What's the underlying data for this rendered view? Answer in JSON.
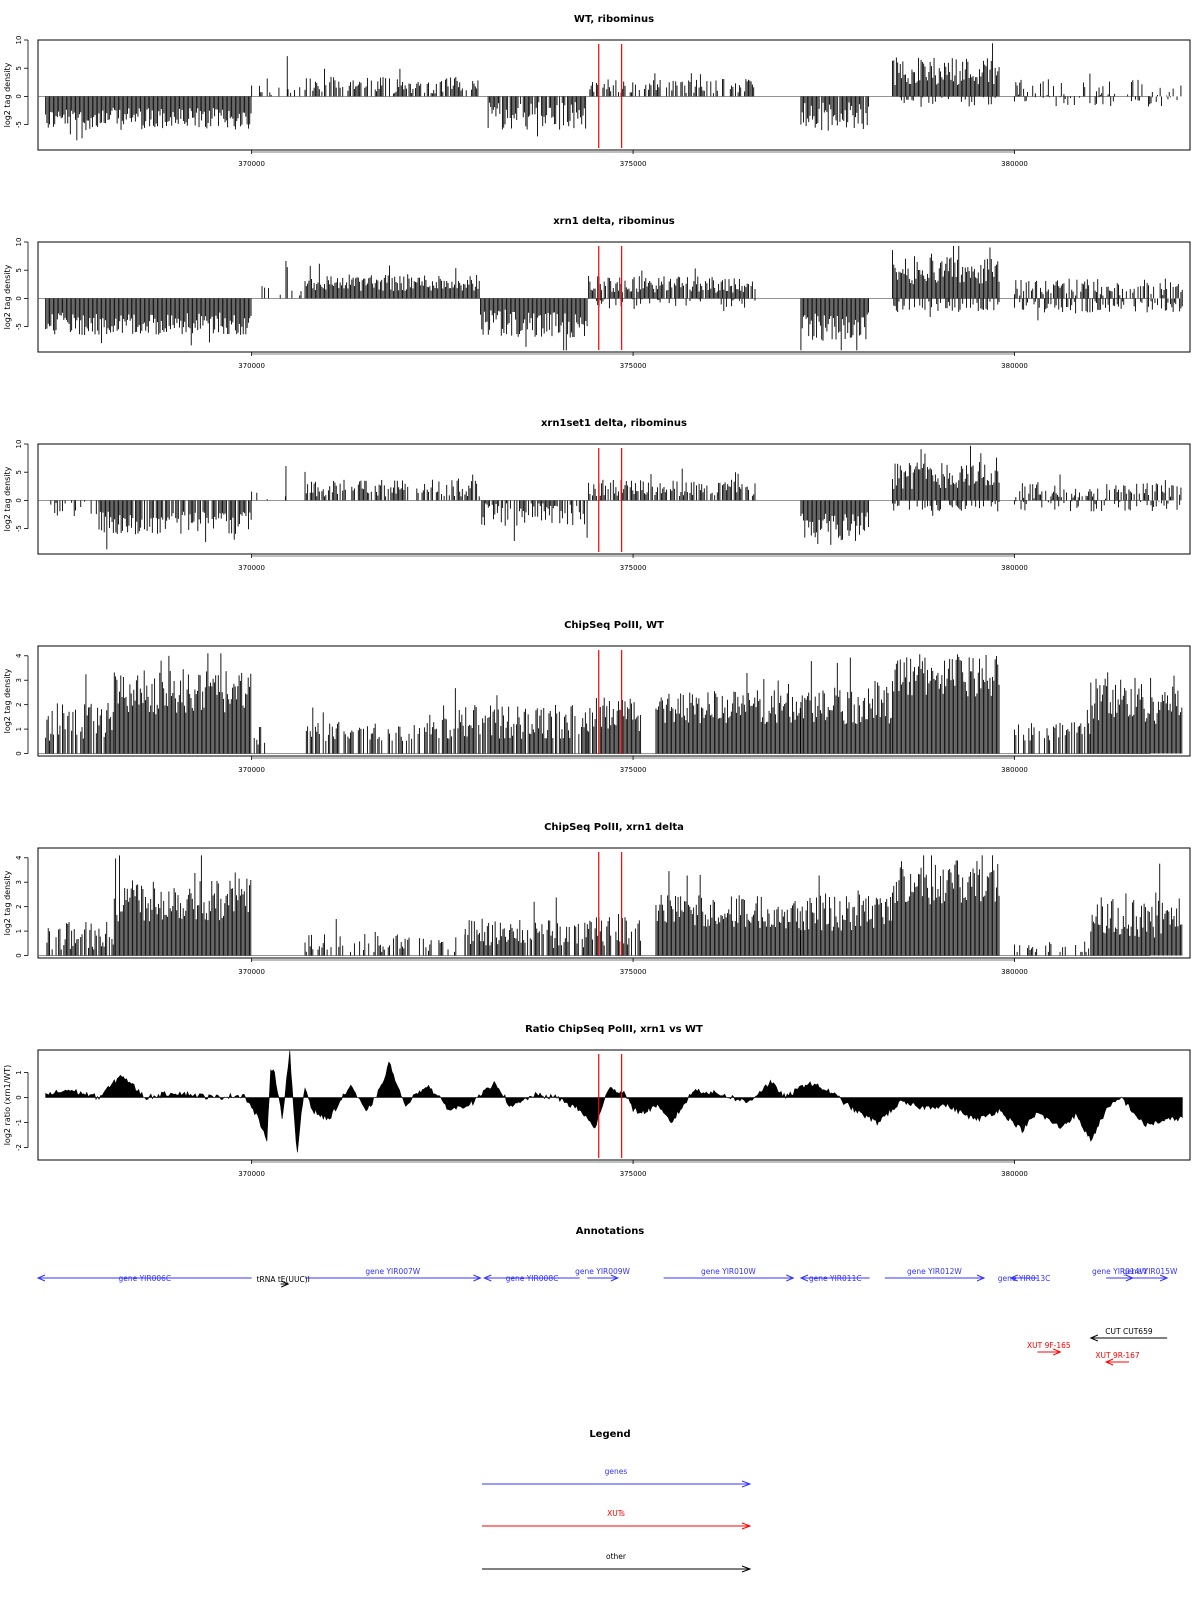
{
  "chart_data": [
    {
      "type": "bar",
      "title": "WT, ribominus",
      "ylabel": "log2 tag density",
      "xlim": [
        367200,
        382300
      ],
      "ylim": [
        -9.5,
        10
      ],
      "yticks": [
        -5,
        0,
        5,
        10
      ],
      "xticks": [
        370000,
        375000,
        380000
      ],
      "markers_x": [
        374550,
        374850
      ],
      "segments": [
        {
          "from": 367300,
          "to": 370000,
          "sign": -1,
          "level": 4.0,
          "var": 2.0,
          "density": 1.0
        },
        {
          "from": 370000,
          "to": 370650,
          "sign": 1,
          "level": 1.0,
          "var": 1.0,
          "density": 0.2
        },
        {
          "from": 370450,
          "to": 370500,
          "sign": 1,
          "level": 7.0,
          "var": 1.0,
          "density": 0.5
        },
        {
          "from": 370700,
          "to": 373000,
          "sign": 1,
          "level": 2.0,
          "var": 1.5,
          "density": 0.7
        },
        {
          "from": 373100,
          "to": 374400,
          "sign": -1,
          "level": 3.5,
          "var": 2.5,
          "density": 0.9
        },
        {
          "from": 374400,
          "to": 376600,
          "sign": 1,
          "level": 1.8,
          "var": 1.3,
          "density": 0.55
        },
        {
          "from": 377200,
          "to": 378100,
          "sign": -1,
          "level": 3.5,
          "var": 2.5,
          "density": 0.9
        },
        {
          "from": 378400,
          "to": 379800,
          "sign": 1,
          "level": 4.5,
          "var": 2.5,
          "density": 1.0
        },
        {
          "from": 378400,
          "to": 379800,
          "sign": -1,
          "level": 1.0,
          "var": 1.0,
          "density": 0.3
        },
        {
          "from": 380000,
          "to": 382200,
          "sign": 1,
          "level": 1.5,
          "var": 1.5,
          "density": 0.35
        },
        {
          "from": 380000,
          "to": 382200,
          "sign": -1,
          "level": 0.8,
          "var": 1.0,
          "density": 0.25
        }
      ]
    },
    {
      "type": "bar",
      "title": "xrn1 delta, ribominus",
      "ylabel": "log2 tag density",
      "xlim": [
        367200,
        382300
      ],
      "ylim": [
        -9.5,
        10
      ],
      "yticks": [
        -5,
        0,
        5,
        10
      ],
      "xticks": [
        370000,
        375000,
        380000
      ],
      "markers_x": [
        374550,
        374850
      ],
      "segments": [
        {
          "from": 367300,
          "to": 370000,
          "sign": -1,
          "level": 4.5,
          "var": 2.0,
          "density": 1.0
        },
        {
          "from": 370000,
          "to": 370650,
          "sign": 1,
          "level": 1.5,
          "var": 1.2,
          "density": 0.3
        },
        {
          "from": 370450,
          "to": 370500,
          "sign": 1,
          "level": 6.0,
          "var": 1.0,
          "density": 0.5
        },
        {
          "from": 370700,
          "to": 373000,
          "sign": 1,
          "level": 2.8,
          "var": 1.5,
          "density": 1.0
        },
        {
          "from": 373000,
          "to": 374400,
          "sign": -1,
          "level": 4.5,
          "var": 2.5,
          "density": 1.0
        },
        {
          "from": 374400,
          "to": 376600,
          "sign": 1,
          "level": 2.5,
          "var": 1.5,
          "density": 0.9
        },
        {
          "from": 374400,
          "to": 376600,
          "sign": -1,
          "level": 1.0,
          "var": 1.0,
          "density": 0.3
        },
        {
          "from": 377200,
          "to": 378100,
          "sign": -1,
          "level": 5.0,
          "var": 2.5,
          "density": 1.0
        },
        {
          "from": 378400,
          "to": 379800,
          "sign": 1,
          "level": 5.0,
          "var": 2.5,
          "density": 1.0
        },
        {
          "from": 378400,
          "to": 379800,
          "sign": -1,
          "level": 1.5,
          "var": 1.0,
          "density": 0.5
        },
        {
          "from": 380000,
          "to": 382200,
          "sign": 1,
          "level": 2.0,
          "var": 1.5,
          "density": 0.7
        },
        {
          "from": 380000,
          "to": 382200,
          "sign": -1,
          "level": 1.5,
          "var": 1.0,
          "density": 0.5
        }
      ]
    },
    {
      "type": "bar",
      "title": "xrn1set1 delta, ribominus",
      "ylabel": "log2 tag density",
      "xlim": [
        367200,
        382300
      ],
      "ylim": [
        -9.5,
        10
      ],
      "yticks": [
        -5,
        0,
        5,
        10
      ],
      "xticks": [
        370000,
        375000,
        380000
      ],
      "markers_x": [
        374550,
        374850
      ],
      "segments": [
        {
          "from": 367300,
          "to": 368000,
          "sign": -1,
          "level": 1.5,
          "var": 1.5,
          "density": 0.4
        },
        {
          "from": 368000,
          "to": 370000,
          "sign": -1,
          "level": 4.0,
          "var": 2.0,
          "density": 0.9
        },
        {
          "from": 370000,
          "to": 370650,
          "sign": 1,
          "level": 1.0,
          "var": 1.0,
          "density": 0.2
        },
        {
          "from": 370450,
          "to": 370500,
          "sign": 1,
          "level": 7.0,
          "var": 1.0,
          "density": 0.5
        },
        {
          "from": 370700,
          "to": 373000,
          "sign": 1,
          "level": 2.2,
          "var": 1.5,
          "density": 0.75
        },
        {
          "from": 373000,
          "to": 374400,
          "sign": -1,
          "level": 2.5,
          "var": 2.0,
          "density": 0.8
        },
        {
          "from": 374400,
          "to": 376600,
          "sign": 1,
          "level": 2.2,
          "var": 1.5,
          "density": 0.8
        },
        {
          "from": 377200,
          "to": 378100,
          "sign": -1,
          "level": 4.5,
          "var": 2.5,
          "density": 1.0
        },
        {
          "from": 378400,
          "to": 379800,
          "sign": 1,
          "level": 4.5,
          "var": 2.5,
          "density": 1.0
        },
        {
          "from": 378400,
          "to": 379800,
          "sign": -1,
          "level": 1.0,
          "var": 1.0,
          "density": 0.4
        },
        {
          "from": 380000,
          "to": 382200,
          "sign": 1,
          "level": 1.8,
          "var": 1.5,
          "density": 0.6
        },
        {
          "from": 380000,
          "to": 382200,
          "sign": -1,
          "level": 1.0,
          "var": 1.0,
          "density": 0.4
        }
      ]
    },
    {
      "type": "bar",
      "title": "ChipSeq PolII, WT",
      "ylabel": "log2 tag density",
      "xlim": [
        367200,
        382300
      ],
      "ylim": [
        -0.1,
        4.4
      ],
      "yticks": [
        0,
        1,
        2,
        3,
        4
      ],
      "xticks": [
        370000,
        375000,
        380000
      ],
      "markers_x": [
        374550,
        374850
      ],
      "segments": [
        {
          "from": 367300,
          "to": 368200,
          "sign": 1,
          "level": 1.3,
          "var": 0.8,
          "density": 0.8
        },
        {
          "from": 368200,
          "to": 370000,
          "sign": 1,
          "level": 2.5,
          "var": 0.9,
          "density": 1.0
        },
        {
          "from": 370000,
          "to": 370200,
          "sign": 1,
          "level": 0.7,
          "var": 0.4,
          "density": 0.6
        },
        {
          "from": 370700,
          "to": 372500,
          "sign": 1,
          "level": 0.9,
          "var": 0.4,
          "density": 0.6
        },
        {
          "from": 372500,
          "to": 374400,
          "sign": 1,
          "level": 1.3,
          "var": 0.7,
          "density": 0.85
        },
        {
          "from": 374400,
          "to": 375100,
          "sign": 1,
          "level": 1.6,
          "var": 0.7,
          "density": 0.9
        },
        {
          "from": 375300,
          "to": 377200,
          "sign": 1,
          "level": 1.9,
          "var": 0.7,
          "density": 1.0
        },
        {
          "from": 377200,
          "to": 378400,
          "sign": 1,
          "level": 2.0,
          "var": 0.8,
          "density": 1.0
        },
        {
          "from": 378400,
          "to": 379800,
          "sign": 1,
          "level": 3.2,
          "var": 0.9,
          "density": 1.0
        },
        {
          "from": 380000,
          "to": 381000,
          "sign": 1,
          "level": 0.9,
          "var": 0.4,
          "density": 0.6
        },
        {
          "from": 381000,
          "to": 382200,
          "sign": 1,
          "level": 2.2,
          "var": 1.0,
          "density": 1.0
        }
      ]
    },
    {
      "type": "bar",
      "title": "ChipSeq PolII, xrn1 delta",
      "ylabel": "log2 tag density",
      "xlim": [
        367200,
        382300
      ],
      "ylim": [
        -0.1,
        4.4
      ],
      "yticks": [
        0,
        1,
        2,
        3,
        4
      ],
      "xticks": [
        370000,
        375000,
        380000
      ],
      "markers_x": [
        374550,
        374850
      ],
      "segments": [
        {
          "from": 367300,
          "to": 368200,
          "sign": 1,
          "level": 0.8,
          "var": 0.6,
          "density": 0.7
        },
        {
          "from": 368200,
          "to": 370000,
          "sign": 1,
          "level": 2.3,
          "var": 0.9,
          "density": 1.0
        },
        {
          "from": 370700,
          "to": 372800,
          "sign": 1,
          "level": 0.5,
          "var": 0.4,
          "density": 0.5
        },
        {
          "from": 372800,
          "to": 374400,
          "sign": 1,
          "level": 0.9,
          "var": 0.6,
          "density": 0.8
        },
        {
          "from": 374400,
          "to": 375100,
          "sign": 1,
          "level": 1.0,
          "var": 0.6,
          "density": 0.8
        },
        {
          "from": 375300,
          "to": 377200,
          "sign": 1,
          "level": 1.8,
          "var": 0.7,
          "density": 1.0
        },
        {
          "from": 377200,
          "to": 378400,
          "sign": 1,
          "level": 1.8,
          "var": 0.8,
          "density": 1.0
        },
        {
          "from": 378400,
          "to": 379800,
          "sign": 1,
          "level": 3.0,
          "var": 0.9,
          "density": 1.0
        },
        {
          "from": 380000,
          "to": 381000,
          "sign": 1,
          "level": 0.3,
          "var": 0.3,
          "density": 0.4
        },
        {
          "from": 381000,
          "to": 382200,
          "sign": 1,
          "level": 1.6,
          "var": 0.9,
          "density": 1.0
        }
      ]
    },
    {
      "type": "area",
      "title": "Ratio ChipSeq PolII, xrn1 vs WT",
      "ylabel": "log2 ratio (xrn1/WT)",
      "xlim": [
        367200,
        382300
      ],
      "ylim": [
        -2.5,
        1.9
      ],
      "yticks": [
        -2,
        -1,
        0,
        1
      ],
      "xticks": [
        370000,
        375000,
        380000
      ],
      "markers_x": [
        374550,
        374850
      ],
      "x": [
        367300,
        367600,
        368000,
        368300,
        368600,
        369000,
        369500,
        369900,
        370100,
        370200,
        370250,
        370300,
        370400,
        370500,
        370550,
        370600,
        370650,
        370700,
        370800,
        371000,
        371300,
        371500,
        371700,
        371800,
        372000,
        372300,
        372600,
        372900,
        373200,
        373400,
        373700,
        374000,
        374300,
        374500,
        374700,
        374800,
        374900,
        375000,
        375150,
        375300,
        375500,
        375800,
        376200,
        376500,
        376800,
        377000,
        377300,
        377600,
        377900,
        378200,
        378500,
        378800,
        379100,
        379500,
        379800,
        380100,
        380300,
        380600,
        380800,
        381000,
        381200,
        381400,
        381700,
        382000,
        382200
      ],
      "values": [
        0.1,
        0.3,
        0.0,
        0.9,
        0.0,
        0.2,
        0.0,
        0.1,
        -0.9,
        -1.8,
        1.2,
        1.0,
        -0.8,
        1.8,
        -0.5,
        -2.3,
        -0.6,
        0.4,
        -0.5,
        -0.9,
        0.5,
        -0.6,
        0.4,
        1.4,
        -0.3,
        0.5,
        -0.5,
        -0.2,
        0.6,
        -0.4,
        0.1,
        0.0,
        -0.5,
        -1.2,
        0.5,
        0.2,
        0.2,
        -0.5,
        -0.6,
        -0.3,
        -1.0,
        0.3,
        0.1,
        -0.2,
        0.6,
        0.0,
        0.6,
        0.2,
        -0.5,
        -1.0,
        -0.2,
        -0.4,
        -0.3,
        -0.9,
        -0.5,
        -1.3,
        -0.6,
        -1.2,
        -0.7,
        -1.7,
        -0.5,
        0.0,
        -1.1,
        -0.9,
        -0.8
      ]
    }
  ],
  "annotations": {
    "title": "Annotations",
    "xlim": [
      367200,
      382300
    ],
    "features": [
      {
        "label": "gene YIR006C",
        "color": "#3333ff",
        "from": 367200,
        "to": 370000,
        "dir": "left",
        "row": 0
      },
      {
        "label": "tRNA tE(UUC)I",
        "color": "#000000",
        "from": 370380,
        "to": 370480,
        "dir": "right",
        "row": 1
      },
      {
        "label": "gene YIR007W",
        "color": "#3333ff",
        "from": 370700,
        "to": 373000,
        "dir": "right",
        "row": 0
      },
      {
        "label": "gene YIR008C",
        "color": "#3333ff",
        "from": 373050,
        "to": 374300,
        "dir": "left",
        "row": 0
      },
      {
        "label": "gene YIR009W",
        "color": "#3333ff",
        "from": 374400,
        "to": 374800,
        "dir": "right",
        "row": 0
      },
      {
        "label": "gene YIR010W",
        "color": "#3333ff",
        "from": 375400,
        "to": 377100,
        "dir": "right",
        "row": 0
      },
      {
        "label": "gene YIR011C",
        "color": "#3333ff",
        "from": 377200,
        "to": 378100,
        "dir": "left",
        "row": 0
      },
      {
        "label": "gene YIR012W",
        "color": "#3333ff",
        "from": 378300,
        "to": 379600,
        "dir": "right",
        "row": 0
      },
      {
        "label": "gene YIR013C",
        "color": "#3333ff",
        "from": 379950,
        "to": 380300,
        "dir": "left",
        "row": 0
      },
      {
        "label": "gene YIR014W",
        "color": "#3333ff",
        "from": 381200,
        "to": 381550,
        "dir": "right",
        "row": 0
      },
      {
        "label": "gene YIR015W",
        "color": "#3333ff",
        "from": 381550,
        "to": 382000,
        "dir": "right",
        "row": 0
      },
      {
        "label": "CUT CUT659",
        "color": "#000000",
        "from": 381000,
        "to": 382000,
        "dir": "left",
        "row": 2
      },
      {
        "label": "XUT 9F-165",
        "color": "#ff0000",
        "from": 380300,
        "to": 380600,
        "dir": "right",
        "row": 3
      },
      {
        "label": "XUT 9R-167",
        "color": "#ff0000",
        "from": 381200,
        "to": 381500,
        "dir": "left",
        "row": 4
      }
    ]
  },
  "legend": {
    "title": "Legend",
    "items": [
      {
        "label": "genes",
        "color": "#3333ff"
      },
      {
        "label": "XUTs",
        "color": "#ff0000"
      },
      {
        "label": "other",
        "color": "#000000"
      }
    ]
  },
  "marker_color": "#ff0000",
  "bar_color": "#000000"
}
